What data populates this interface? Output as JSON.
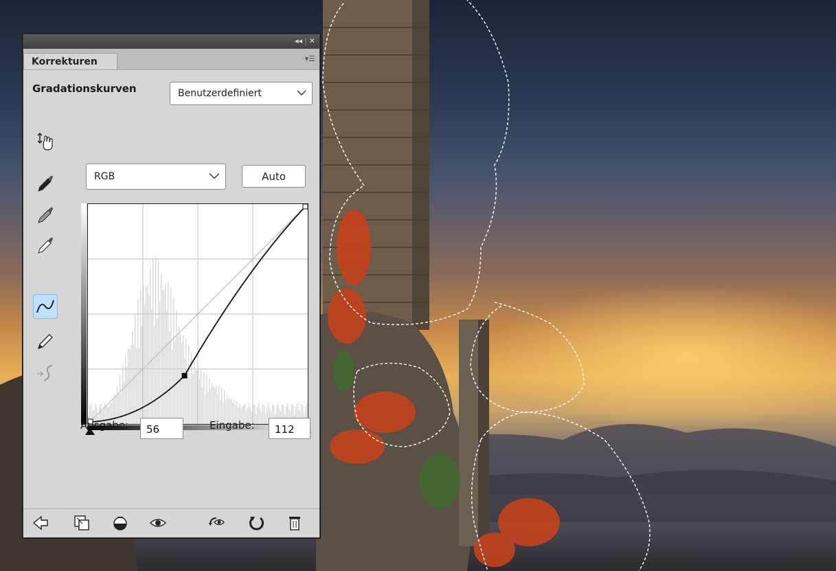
{
  "panel": {
    "tab_label": "Korrekturen",
    "adjustment_title": "Gradationskurven",
    "preset": {
      "selected": "Benutzerdefiniert"
    },
    "channel": {
      "selected": "RGB"
    },
    "auto_label": "Auto",
    "output_label": "Ausgabe:",
    "output_value": "56",
    "input_label": "Eingabe:",
    "input_value": "112"
  },
  "curve": {
    "point_input": 112,
    "point_output": 56,
    "range": [
      0,
      255
    ]
  },
  "icons": {
    "tools": [
      "hand-target-icon",
      "black-eyedropper-icon",
      "gray-eyedropper-icon",
      "white-eyedropper-icon",
      "curve-point-icon",
      "pencil-icon",
      "smooth-curve-icon"
    ],
    "bottom": [
      "back-arrow-icon",
      "expand-view-icon",
      "clip-layer-icon",
      "visibility-eye-icon",
      "view-previous-icon",
      "reset-icon",
      "trash-icon"
    ]
  },
  "colors": {
    "panel_bg": "#d6d6d6",
    "selected_tool": "#bfe0ff"
  }
}
